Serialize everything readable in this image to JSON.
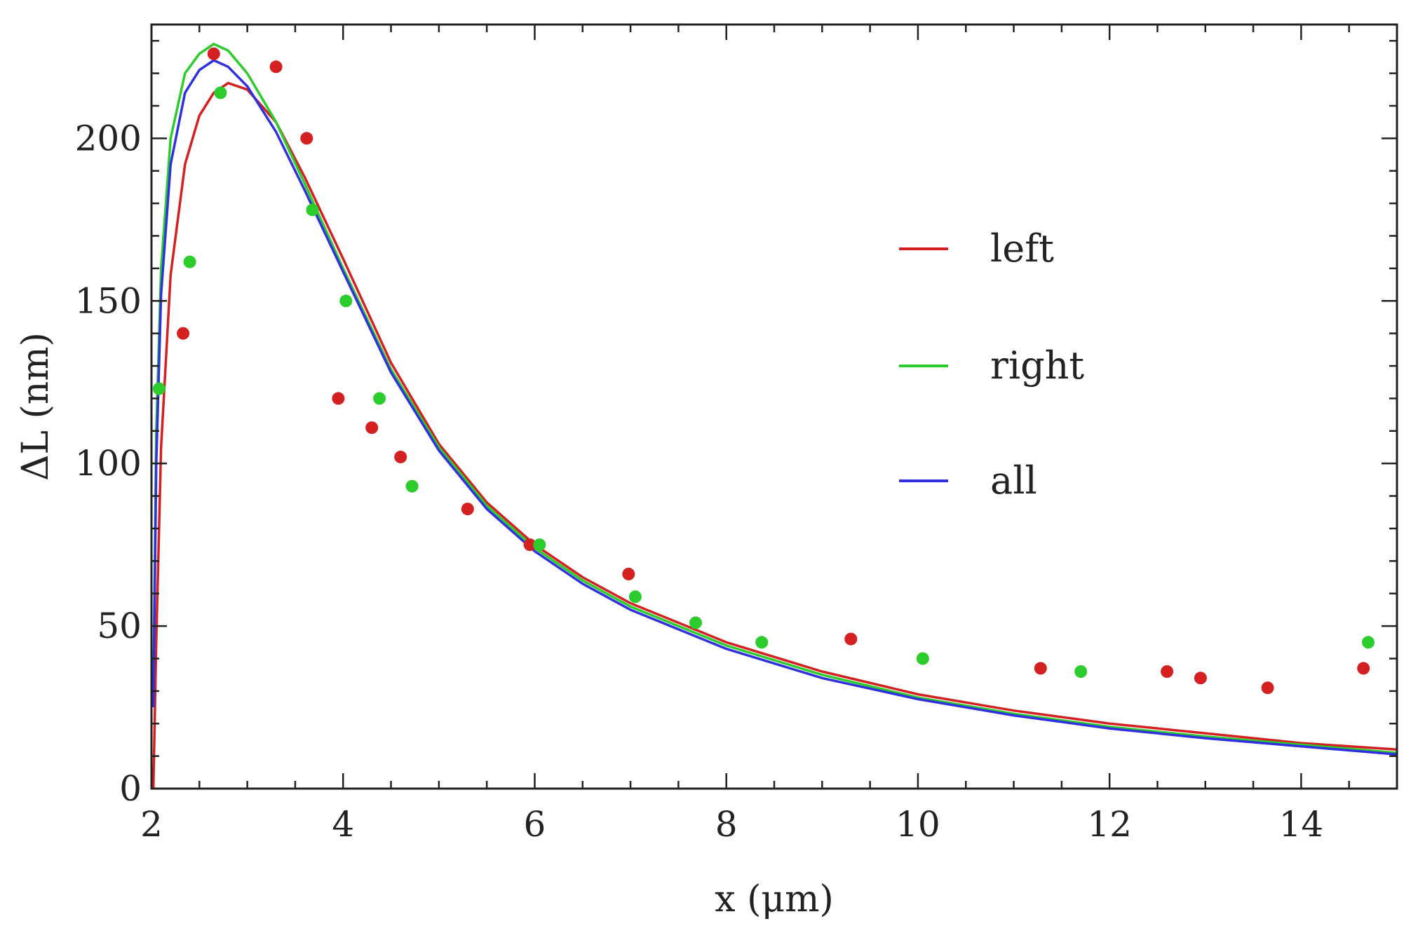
{
  "chart_data": {
    "type": "scatter",
    "title": "",
    "xlabel": "x (μm)",
    "ylabel": "ΔL (nm)",
    "xlim": [
      2,
      15
    ],
    "ylim": [
      0,
      235
    ],
    "xticks": [
      2,
      4,
      6,
      8,
      10,
      12,
      14
    ],
    "yticks": [
      0,
      50,
      100,
      150,
      200
    ],
    "grid": false,
    "legend_position": "center-right",
    "colors": {
      "left": "#d42020",
      "right": "#2ccc2c",
      "all": "#3030e0"
    },
    "series": [
      {
        "name": "left",
        "kind": "curve",
        "points": [
          [
            2.02,
            0
          ],
          [
            2.05,
            45
          ],
          [
            2.1,
            105
          ],
          [
            2.2,
            158
          ],
          [
            2.35,
            192
          ],
          [
            2.5,
            207
          ],
          [
            2.65,
            214
          ],
          [
            2.8,
            217
          ],
          [
            3.0,
            215
          ],
          [
            3.3,
            205
          ],
          [
            3.6,
            188
          ],
          [
            4.0,
            163
          ],
          [
            4.5,
            131
          ],
          [
            5.0,
            106
          ],
          [
            5.5,
            88
          ],
          [
            6.0,
            75
          ],
          [
            6.5,
            65
          ],
          [
            7.0,
            57
          ],
          [
            7.5,
            51
          ],
          [
            8.0,
            45
          ],
          [
            9.0,
            36
          ],
          [
            10.0,
            29
          ],
          [
            11.0,
            24
          ],
          [
            12.0,
            20
          ],
          [
            13.0,
            17
          ],
          [
            14.0,
            14
          ],
          [
            15.0,
            12
          ]
        ]
      },
      {
        "name": "right",
        "kind": "curve",
        "points": [
          [
            2.02,
            30
          ],
          [
            2.05,
            110
          ],
          [
            2.1,
            160
          ],
          [
            2.2,
            200
          ],
          [
            2.35,
            220
          ],
          [
            2.5,
            226
          ],
          [
            2.65,
            229
          ],
          [
            2.8,
            227
          ],
          [
            3.0,
            220
          ],
          [
            3.3,
            205
          ],
          [
            3.6,
            186
          ],
          [
            4.0,
            160
          ],
          [
            4.5,
            129
          ],
          [
            5.0,
            105
          ],
          [
            5.5,
            87
          ],
          [
            6.0,
            74
          ],
          [
            6.5,
            64
          ],
          [
            7.0,
            56
          ],
          [
            7.5,
            50
          ],
          [
            8.0,
            44
          ],
          [
            9.0,
            35
          ],
          [
            10.0,
            28
          ],
          [
            11.0,
            23
          ],
          [
            12.0,
            19
          ],
          [
            13.0,
            16
          ],
          [
            14.0,
            13.5
          ],
          [
            15.0,
            11
          ]
        ]
      },
      {
        "name": "all",
        "kind": "curve",
        "points": [
          [
            2.02,
            25
          ],
          [
            2.05,
            100
          ],
          [
            2.1,
            152
          ],
          [
            2.2,
            192
          ],
          [
            2.35,
            214
          ],
          [
            2.5,
            221
          ],
          [
            2.65,
            224
          ],
          [
            2.8,
            222
          ],
          [
            3.0,
            216
          ],
          [
            3.3,
            202
          ],
          [
            3.6,
            184
          ],
          [
            4.0,
            159
          ],
          [
            4.5,
            128
          ],
          [
            5.0,
            104
          ],
          [
            5.5,
            86
          ],
          [
            6.0,
            73
          ],
          [
            6.5,
            63
          ],
          [
            7.0,
            55
          ],
          [
            7.5,
            49
          ],
          [
            8.0,
            43
          ],
          [
            9.0,
            34
          ],
          [
            10.0,
            27.5
          ],
          [
            11.0,
            22.5
          ],
          [
            12.0,
            18.5
          ],
          [
            13.0,
            15.5
          ],
          [
            14.0,
            13
          ],
          [
            15.0,
            10.5
          ]
        ]
      },
      {
        "name": "left",
        "kind": "points",
        "points": [
          [
            2.33,
            140
          ],
          [
            2.65,
            226
          ],
          [
            3.3,
            222
          ],
          [
            3.62,
            200
          ],
          [
            3.95,
            120
          ],
          [
            4.3,
            111
          ],
          [
            4.6,
            102
          ],
          [
            5.3,
            86
          ],
          [
            5.95,
            75
          ],
          [
            6.98,
            66
          ],
          [
            9.3,
            46
          ],
          [
            11.28,
            37
          ],
          [
            12.6,
            36
          ],
          [
            12.95,
            34
          ],
          [
            13.65,
            31
          ],
          [
            14.65,
            37
          ]
        ]
      },
      {
        "name": "right",
        "kind": "points",
        "points": [
          [
            2.08,
            123
          ],
          [
            2.4,
            162
          ],
          [
            2.72,
            214
          ],
          [
            3.68,
            178
          ],
          [
            4.03,
            150
          ],
          [
            4.38,
            120
          ],
          [
            4.72,
            93
          ],
          [
            6.05,
            75
          ],
          [
            7.05,
            59
          ],
          [
            7.68,
            51
          ],
          [
            8.37,
            45
          ],
          [
            10.05,
            40
          ],
          [
            11.7,
            36
          ],
          [
            14.7,
            45
          ]
        ]
      }
    ]
  }
}
